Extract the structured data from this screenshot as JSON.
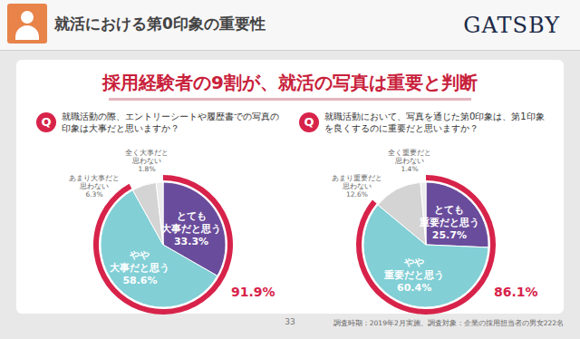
{
  "header": {
    "title": "就活における第0印象の重要性",
    "logo": "GATSBY",
    "headline": "採用経験者の9割が、就活の写真は重要と判断",
    "page": 33,
    "footnote": "調査時期：2019年2月実施、調査対象：企業の採用担当者の男女222名"
  },
  "chart_data": [
    {
      "type": "pie",
      "q_label": "Q",
      "title": "就職活動の際、エントリーシートや履歴書での写真の印象は大事だと思いますか？",
      "categories": [
        "とても大事だと思う",
        "やや大事だと思う",
        "あまり大事だと思わない",
        "全く大事だと思わない"
      ],
      "values": [
        33.3,
        58.6,
        6.3,
        1.8
      ],
      "value_labels": [
        "33.3%",
        "58.6%",
        "6.3%",
        "1.8%"
      ],
      "colors": [
        "#6a4c9c",
        "#82cfd6",
        "#d4d4d4",
        "#ececec"
      ],
      "data_labels": true,
      "total": 91.9,
      "total_label": "91.9%",
      "color": "#d7234a"
    },
    {
      "type": "pie",
      "q_label": "Q",
      "title": "就職活動において、写真を通じた第0印象は、第1印象を良くするのに重要だと思いますか？",
      "categories": [
        "とても重要だと思う",
        "やや重要だと思う",
        "あまり重要だと思わない",
        "全く重要だと思わない"
      ],
      "values": [
        25.7,
        60.4,
        12.6,
        1.4
      ],
      "value_labels": [
        "25.7%",
        "60.4%",
        "12.6%",
        "1.4%"
      ],
      "colors": [
        "#6a4c9c",
        "#82cfd6",
        "#d4d4d4",
        "#ececec"
      ],
      "data_labels": true,
      "total": 86.1,
      "total_label": "86.1%",
      "color": "#d7234a"
    }
  ]
}
